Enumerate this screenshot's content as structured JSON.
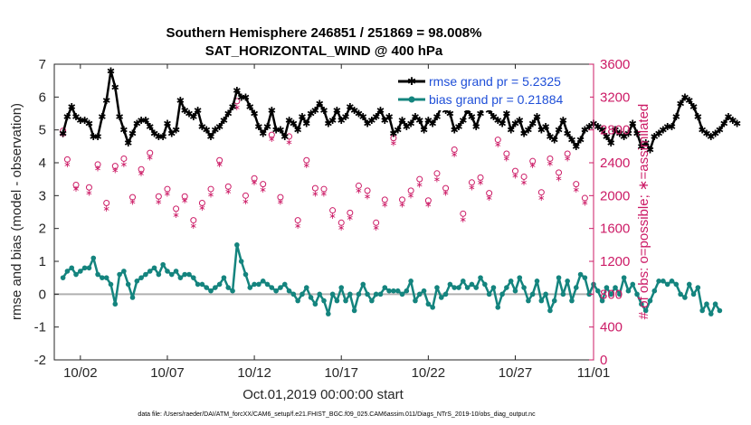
{
  "chart_data": {
    "type": "line",
    "title_line1": "Southern Hemisphere 246851 / 251869 = 98.008%",
    "title_line2": "SAT_HORIZONTAL_WIND @ 400 hPa",
    "xlabel": "Oct.01,2019 00:00:00 start",
    "ylabel_left": "rmse and bias (model - observation)",
    "ylabel_right": "# of obs: o=possible; ∗=assimilated",
    "footer": "data file: /Users/raeder/DAI/ATM_forcXX/CAM6_setup/f.e21.FHIST_BGC.f09_025.CAM6assim.011/Diags_NTrS_2019-10/obs_diag_output.nc",
    "xlim": [
      0.5,
      31.5
    ],
    "ylim_left": [
      -2,
      7
    ],
    "ylim_right": [
      0,
      3600
    ],
    "x_ticks": [
      2,
      7,
      12,
      17,
      22,
      27,
      32
    ],
    "x_tick_labels": [
      "10/02",
      "10/07",
      "10/12",
      "10/17",
      "10/22",
      "10/27",
      "11/01"
    ],
    "y_ticks_left": [
      -2,
      -1,
      0,
      1,
      2,
      3,
      4,
      5,
      6,
      7
    ],
    "y_tick_labels_left": [
      "-2",
      "-1",
      "0",
      "1",
      "2",
      "3",
      "4",
      "5",
      "6",
      "7"
    ],
    "y_ticks_right": [
      0,
      400,
      800,
      1200,
      1600,
      2000,
      2400,
      2800,
      3200,
      3600
    ],
    "y_tick_labels_right": [
      "0",
      "400",
      "800",
      "1200",
      "1600",
      "2000",
      "2400",
      "2800",
      "3200",
      "3600"
    ],
    "x_start": 1,
    "x_step": 0.25,
    "series": [
      {
        "name": "rmse grand pr = 5.2325",
        "color": "#000000",
        "axis": "left",
        "values": [
          4.9,
          5.4,
          5.7,
          5.4,
          5.3,
          5.3,
          5.2,
          4.8,
          4.8,
          5.4,
          5.9,
          6.8,
          6.3,
          5.4,
          5.0,
          4.6,
          4.9,
          5.2,
          5.3,
          5.3,
          5.1,
          4.9,
          4.8,
          4.8,
          5.2,
          4.9,
          5.0,
          5.9,
          5.6,
          5.5,
          5.4,
          5.6,
          5.1,
          5.0,
          4.8,
          5.0,
          5.1,
          5.3,
          5.5,
          5.7,
          6.2,
          6.0,
          6.0,
          5.7,
          5.5,
          5.1,
          4.9,
          5.1,
          5.6,
          5.0,
          5.0,
          4.8,
          5.3,
          5.2,
          5.0,
          5.4,
          5.2,
          5.5,
          5.6,
          5.8,
          5.6,
          5.2,
          5.3,
          5.6,
          5.3,
          5.4,
          5.7,
          5.6,
          5.5,
          5.4,
          5.2,
          5.3,
          5.4,
          5.6,
          5.3,
          5.4,
          4.9,
          5.0,
          5.3,
          5.1,
          5.2,
          5.4,
          5.3,
          5.0,
          5.3,
          5.2,
          5.4,
          5.7,
          5.6,
          5.5,
          5.0,
          5.1,
          5.3,
          5.6,
          5.4,
          5.1,
          5.5,
          5.8,
          5.6,
          5.4,
          5.3,
          5.2,
          5.5,
          5.0,
          5.2,
          5.3,
          4.9,
          5.0,
          5.2,
          5.4,
          5.0,
          5.1,
          4.8,
          4.7,
          5.0,
          5.3,
          4.9,
          4.7,
          4.5,
          4.7,
          5.0,
          5.1,
          5.2,
          5.1,
          5.0,
          4.8,
          4.6,
          5.0,
          4.9,
          4.8,
          4.9,
          5.2,
          4.9,
          4.5,
          4.6,
          4.4,
          4.8,
          4.9,
          5.0,
          5.1,
          5.1,
          5.4,
          5.8,
          6.0,
          5.9,
          5.7,
          5.4,
          5.0,
          4.9,
          4.8,
          4.9,
          5.0,
          5.2,
          5.4,
          5.3,
          5.2
        ]
      },
      {
        "name": "bias grand pr = 0.21884",
        "color": "#14847e",
        "axis": "left",
        "values": [
          0.5,
          0.7,
          0.8,
          0.6,
          0.7,
          0.8,
          0.8,
          1.1,
          0.6,
          0.5,
          0.5,
          0.3,
          -0.3,
          0.6,
          0.7,
          0.3,
          -0.1,
          0.4,
          0.5,
          0.6,
          0.7,
          0.8,
          0.6,
          0.9,
          0.7,
          0.6,
          0.7,
          0.5,
          0.6,
          0.6,
          0.5,
          0.3,
          0.3,
          0.2,
          0.1,
          0.2,
          0.3,
          0.5,
          0.2,
          0.1,
          1.5,
          1.0,
          0.6,
          0.2,
          0.3,
          0.3,
          0.4,
          0.3,
          0.2,
          0.1,
          0.2,
          0.3,
          0.1,
          0.0,
          -0.2,
          0.0,
          0.2,
          -0.1,
          -0.3,
          0.0,
          -0.2,
          -0.6,
          0.0,
          -0.2,
          0.2,
          -0.2,
          0.0,
          -0.5,
          0.0,
          0.3,
          0.0,
          -0.2,
          0.0,
          0.0,
          0.2,
          0.1,
          0.1,
          0.1,
          0.0,
          0.1,
          0.4,
          -0.2,
          0.0,
          0.1,
          -0.3,
          -0.4,
          0.2,
          -0.1,
          0.0,
          0.3,
          0.2,
          0.2,
          0.4,
          0.2,
          0.3,
          0.2,
          0.5,
          0.3,
          0.0,
          0.2,
          -0.4,
          0.0,
          0.2,
          0.4,
          0.1,
          0.5,
          0.2,
          -0.2,
          0.0,
          0.4,
          -0.2,
          0.0,
          -0.5,
          -0.2,
          0.5,
          0.0,
          0.4,
          -0.2,
          0.2,
          0.6,
          0.5,
          0.0,
          0.3,
          0.1,
          -0.2,
          0.2,
          0.0,
          0.2,
          0.0,
          0.5,
          0.1,
          0.3,
          0.0,
          -0.3,
          -0.5,
          -0.2,
          0.1,
          0.4,
          0.4,
          0.3,
          0.4,
          0.3,
          0.0,
          -0.1,
          0.3,
          0.0,
          0.2,
          -0.5,
          -0.3,
          -0.6,
          -0.3,
          -0.5
        ]
      }
    ],
    "obs_possible": {
      "name": "possible",
      "color": "#cc1b66",
      "axis": "right",
      "x": [
        1,
        1.25,
        1.75,
        2.5,
        3,
        3.5,
        4,
        4.5,
        5,
        5.5,
        6,
        6.5,
        7,
        7.5,
        8,
        8.5,
        9,
        9.5,
        10,
        10.5,
        11,
        11.5,
        12,
        12.5,
        13,
        13.5,
        14,
        14.5,
        15,
        15.5,
        16,
        16.5,
        17,
        17.5,
        18,
        18.5,
        19,
        19.5,
        20,
        20.5,
        21,
        21.5,
        22,
        22.5,
        23,
        23.5,
        24,
        24.5,
        25,
        25.5,
        26,
        26.5,
        27,
        27.5,
        28,
        28.5,
        29,
        29.5,
        30,
        30.5,
        31
      ],
      "values": [
        2790,
        2440,
        2130,
        2100,
        2380,
        1910,
        2360,
        2450,
        1980,
        2320,
        2520,
        1990,
        2080,
        1840,
        1990,
        1700,
        1910,
        2080,
        2430,
        2110,
        3150,
        2000,
        2210,
        2140,
        2740,
        1980,
        2720,
        1700,
        2430,
        2090,
        2080,
        1820,
        1670,
        1790,
        2120,
        2060,
        1670,
        1950,
        2700,
        1950,
        2060,
        2200,
        1940,
        2270,
        2090,
        2560,
        1780,
        2160,
        2220,
        2030,
        2680,
        2510,
        2300,
        2230,
        2420,
        2040,
        2450,
        2280,
        2510,
        2140,
        1970
      ]
    },
    "obs_assimilated": {
      "name": "assimilated",
      "color": "#cc1b66",
      "axis": "right",
      "x": [
        1,
        1.25,
        1.75,
        2.5,
        3,
        3.5,
        4,
        4.5,
        5,
        5.5,
        6,
        6.5,
        7,
        7.5,
        8,
        8.5,
        9,
        9.5,
        10,
        10.5,
        11,
        11.5,
        12,
        12.5,
        13,
        13.5,
        14,
        14.5,
        15,
        15.5,
        16,
        16.5,
        17,
        17.5,
        18,
        18.5,
        19,
        19.5,
        20,
        20.5,
        21,
        21.5,
        22,
        22.5,
        23,
        23.5,
        24,
        24.5,
        25,
        25.5,
        26,
        26.5,
        27,
        27.5,
        28,
        28.5,
        29,
        29.5,
        30,
        30.5,
        31
      ],
      "values": [
        2750,
        2390,
        2090,
        2040,
        2340,
        1850,
        2320,
        2390,
        1930,
        2280,
        2470,
        1930,
        2030,
        1770,
        1950,
        1640,
        1860,
        2020,
        2390,
        2060,
        3080,
        1940,
        2170,
        2080,
        2700,
        1930,
        2660,
        1640,
        2380,
        2030,
        2030,
        1760,
        1620,
        1740,
        2070,
        2000,
        1620,
        1900,
        2650,
        1900,
        2010,
        2140,
        1900,
        2210,
        2040,
        2510,
        1720,
        2110,
        2170,
        1980,
        2630,
        2460,
        2250,
        2170,
        2380,
        1980,
        2400,
        2220,
        2460,
        2080,
        1920
      ]
    }
  }
}
